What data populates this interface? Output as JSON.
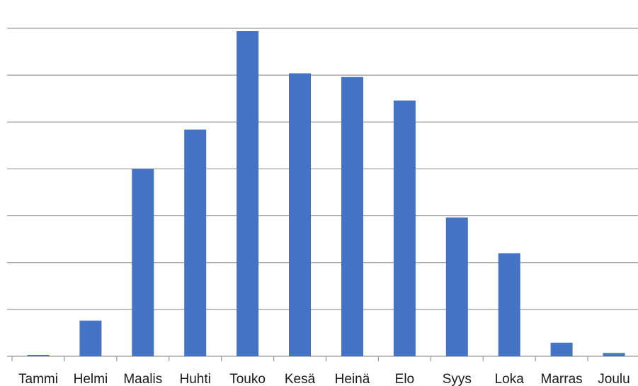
{
  "colors": {
    "bar": "#4472c4",
    "grid": "#9a9a9a",
    "text": "#1a1a1a"
  },
  "chart_data": {
    "type": "bar",
    "title": "",
    "xlabel": "",
    "ylabel": "",
    "grid": true,
    "legend": "none",
    "ylim": [
      0,
      7
    ],
    "gridline_values": [
      0,
      1,
      2,
      3,
      4,
      5,
      6,
      7
    ],
    "categories": [
      "Tammi",
      "Helmi",
      "Maalis",
      "Huhti",
      "Touko",
      "Kesä",
      "Heinä",
      "Elo",
      "Syys",
      "Loka",
      "Marras",
      "Joulu"
    ],
    "values": [
      0.03,
      0.76,
      4.0,
      4.84,
      6.94,
      6.04,
      5.96,
      5.46,
      2.96,
      2.2,
      0.29,
      0.07
    ]
  }
}
